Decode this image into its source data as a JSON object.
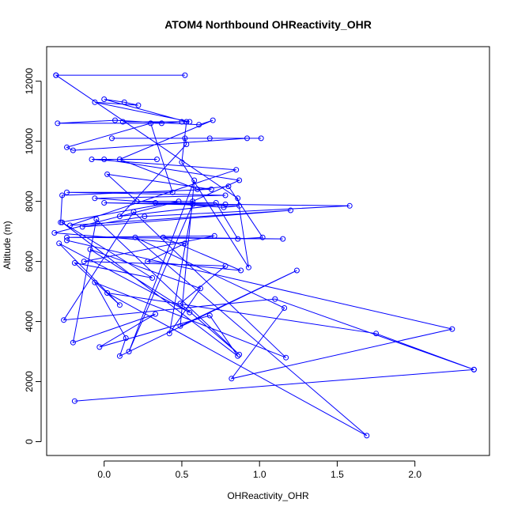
{
  "chart_data": {
    "type": "line",
    "title": "ATOM4 Northbound OHReactivity_OHR",
    "xlabel": "OHReactivity_OHR",
    "ylabel": "Altitude (m)",
    "xlim": [
      -0.37,
      2.48
    ],
    "ylim": [
      -460,
      13150
    ],
    "xticks": [
      "0.0",
      "0.5",
      "1.0",
      "1.5",
      "2.0"
    ],
    "yticks": [
      "0",
      "2000",
      "4000",
      "6000",
      "8000",
      "10000",
      "12000"
    ],
    "color": "#0000ff",
    "grid": false,
    "series": [
      {
        "name": "",
        "points": [
          [
            -0.31,
            12200
          ],
          [
            0.52,
            12200
          ],
          [
            -0.31,
            12200
          ],
          [
            0.86,
            8100
          ],
          [
            0.93,
            5800
          ],
          [
            0.5,
            9300
          ],
          [
            0.53,
            10650
          ],
          [
            0.0,
            11400
          ],
          [
            0.13,
            11300
          ],
          [
            0.22,
            11200
          ],
          [
            -0.06,
            11300
          ],
          [
            0.55,
            10650
          ],
          [
            0.12,
            10650
          ],
          [
            0.5,
            10650
          ],
          [
            0.37,
            10600
          ],
          [
            -0.3,
            10600
          ],
          [
            0.07,
            10700
          ],
          [
            0.61,
            10550
          ],
          [
            0.7,
            10700
          ],
          [
            0.1,
            9400
          ],
          [
            0.6,
            8400
          ],
          [
            0.8,
            8500
          ],
          [
            1.02,
            6800
          ],
          [
            0.86,
            6750
          ],
          [
            0.72,
            7950
          ],
          [
            0.33,
            7950
          ],
          [
            0.78,
            7900
          ],
          [
            0.1,
            7500
          ],
          [
            0.53,
            9900
          ],
          [
            0.52,
            10100
          ],
          [
            1.01,
            10100
          ],
          [
            0.05,
            10100
          ],
          [
            0.68,
            10100
          ],
          [
            0.92,
            10100
          ],
          [
            -0.2,
            9700
          ],
          [
            -0.24,
            9800
          ],
          [
            0.3,
            10600
          ],
          [
            0.44,
            8300
          ],
          [
            -0.24,
            8300
          ],
          [
            0.78,
            8200
          ],
          [
            -0.06,
            8100
          ],
          [
            0.77,
            7800
          ],
          [
            0.87,
            7850
          ],
          [
            0.0,
            7950
          ],
          [
            1.58,
            7850
          ],
          [
            0.26,
            7500
          ],
          [
            -0.14,
            7150
          ],
          [
            1.2,
            7700
          ],
          [
            -0.22,
            7200
          ],
          [
            0.85,
            9050
          ],
          [
            -0.08,
            9400
          ],
          [
            0.34,
            9400
          ],
          [
            0.0,
            9400
          ],
          [
            0.87,
            8700
          ],
          [
            0.57,
            8000
          ],
          [
            0.21,
            8000
          ],
          [
            0.02,
            8900
          ],
          [
            0.69,
            8400
          ],
          [
            -0.27,
            8200
          ],
          [
            -0.28,
            7300
          ],
          [
            0.48,
            8000
          ],
          [
            -0.32,
            6950
          ],
          [
            0.52,
            6600
          ],
          [
            0.28,
            6000
          ],
          [
            0.88,
            5700
          ],
          [
            0.38,
            6800
          ],
          [
            1.15,
            6750
          ],
          [
            -0.24,
            6800
          ],
          [
            0.71,
            6850
          ],
          [
            -0.13,
            6000
          ],
          [
            0.78,
            5850
          ],
          [
            0.49,
            4600
          ],
          [
            0.87,
            2900
          ],
          [
            -0.05,
            7400
          ],
          [
            -0.2,
            3300
          ],
          [
            0.33,
            4250
          ],
          [
            -0.03,
            3150
          ],
          [
            0.68,
            4200
          ],
          [
            0.86,
            2850
          ],
          [
            -0.27,
            7300
          ],
          [
            0.31,
            5450
          ],
          [
            -0.19,
            5950
          ],
          [
            0.1,
            4550
          ],
          [
            -0.29,
            6600
          ],
          [
            0.55,
            4300
          ],
          [
            -0.09,
            6400
          ],
          [
            0.62,
            5100
          ],
          [
            0.42,
            3600
          ],
          [
            0.57,
            7900
          ],
          [
            0.16,
            3000
          ],
          [
            0.58,
            8700
          ],
          [
            0.49,
            3850
          ],
          [
            1.24,
            5700
          ],
          [
            0.1,
            2850
          ],
          [
            0.14,
            3450
          ],
          [
            -0.06,
            5300
          ],
          [
            1.17,
            2800
          ],
          [
            0.19,
            7650
          ],
          [
            -0.26,
            4050
          ],
          [
            1.1,
            4750
          ],
          [
            2.38,
            2400
          ],
          [
            -0.19,
            1350
          ],
          [
            2.38,
            2400
          ],
          [
            1.75,
            3600
          ],
          [
            0.02,
            4950
          ],
          [
            1.69,
            200
          ],
          [
            0.2,
            6800
          ],
          [
            1.16,
            4450
          ],
          [
            0.82,
            2100
          ],
          [
            2.24,
            3750
          ],
          [
            -0.24,
            6700
          ]
        ]
      }
    ]
  }
}
